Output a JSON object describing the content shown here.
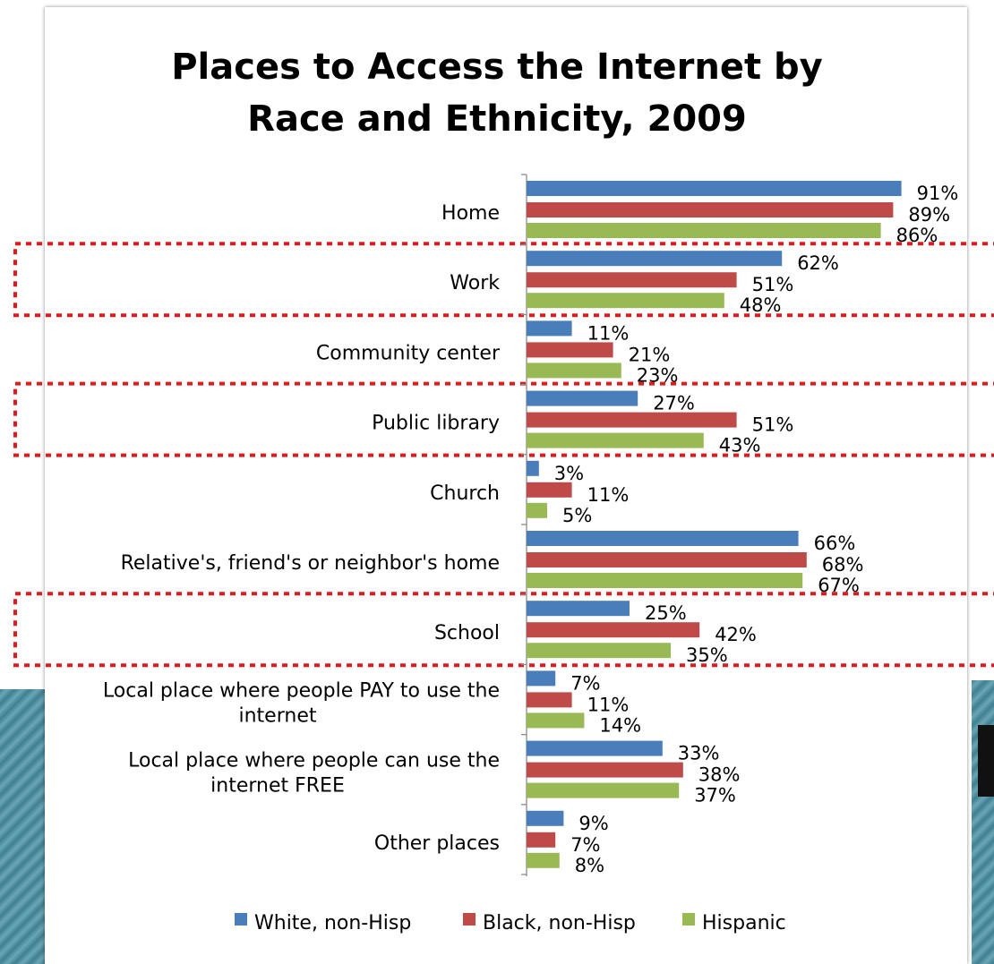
{
  "chart_data": {
    "type": "bar",
    "orientation": "horizontal",
    "title_lines": [
      "Places to Access the Internet by",
      "Race and Ethnicity, 2009"
    ],
    "categories": [
      {
        "lines": [
          "Home"
        ]
      },
      {
        "lines": [
          "Work"
        ]
      },
      {
        "lines": [
          "Community center"
        ]
      },
      {
        "lines": [
          "Public library"
        ]
      },
      {
        "lines": [
          "Church"
        ]
      },
      {
        "lines": [
          "Relative's, friend's or neighbor's home"
        ]
      },
      {
        "lines": [
          "School"
        ]
      },
      {
        "lines": [
          "Local place where people PAY to use the",
          "internet"
        ]
      },
      {
        "lines": [
          "Local place where people can use the",
          "internet FREE"
        ]
      },
      {
        "lines": [
          "Other places"
        ]
      }
    ],
    "series": [
      {
        "name": "White, non-Hisp",
        "color": "#4a7ebb",
        "values": [
          91,
          62,
          11,
          27,
          3,
          66,
          25,
          7,
          33,
          9
        ]
      },
      {
        "name": "Black, non-Hisp",
        "color": "#be4b48",
        "values": [
          89,
          51,
          21,
          51,
          11,
          68,
          42,
          11,
          38,
          7
        ]
      },
      {
        "name": "Hispanic",
        "color": "#98b954",
        "values": [
          86,
          48,
          23,
          43,
          5,
          67,
          35,
          14,
          37,
          8
        ]
      }
    ],
    "value_suffix": "%",
    "xlim": [
      0,
      100
    ],
    "grid": false,
    "legend_position": "bottom",
    "highlighted_categories": [
      "Work",
      "Public library",
      "School"
    ],
    "highlight_style": "red dotted box"
  }
}
